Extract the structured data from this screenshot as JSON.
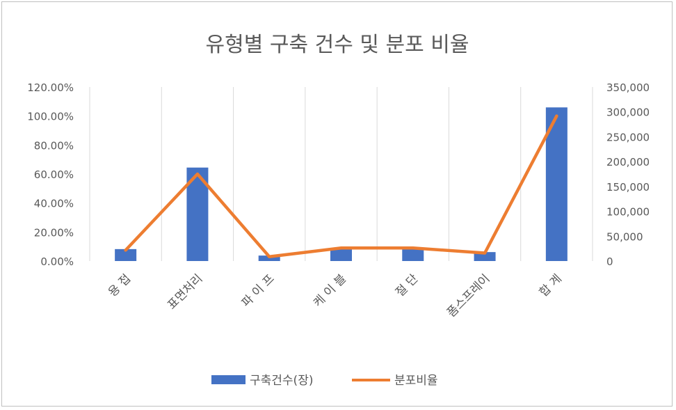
{
  "chart_data": {
    "type": "bar+line",
    "title": "유형별 구축 건수 및 분포 비율",
    "categories": [
      "용 접",
      "표면처리",
      "파 이 프",
      "케 이 블",
      "절 단",
      "폼스프레이",
      "합 계"
    ],
    "series": [
      {
        "name": "구축건수(장)",
        "kind": "bar",
        "axis": "right",
        "color": "#4472c4",
        "values": [
          24000,
          188000,
          11000,
          26000,
          26000,
          18000,
          309000
        ]
      },
      {
        "name": "분포비율",
        "kind": "line",
        "axis": "left",
        "color": "#ed7d31",
        "values": [
          0.075,
          0.6,
          0.03,
          0.09,
          0.09,
          0.055,
          1.0
        ]
      }
    ],
    "left_axis": {
      "min": 0,
      "max": 1.2,
      "ticks": [
        "0.00%",
        "20.00%",
        "40.00%",
        "60.00%",
        "80.00%",
        "100.00%",
        "120.00%"
      ]
    },
    "right_axis": {
      "min": 0,
      "max": 350000,
      "ticks": [
        "0",
        "50,000",
        "100,000",
        "150,000",
        "200,000",
        "250,000",
        "300,000",
        "350,000"
      ]
    },
    "grid": "vertical",
    "legend": "bottom"
  }
}
